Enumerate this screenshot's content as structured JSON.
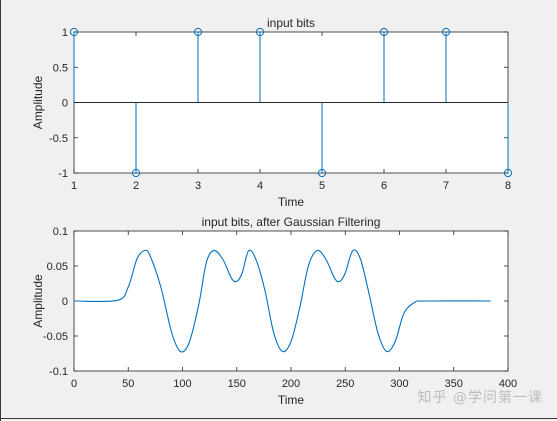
{
  "watermark": "知乎 @学问第一课",
  "chart_data": [
    {
      "type": "stem",
      "title": "input bits",
      "xlabel": "Time",
      "ylabel": "Amplitude",
      "xlim": [
        1,
        8
      ],
      "ylim": [
        -1,
        1
      ],
      "xticks": [
        "1",
        "2",
        "3",
        "4",
        "5",
        "6",
        "7",
        "8"
      ],
      "yticks": [
        "-1",
        "-0.5",
        "0",
        "0.5",
        "1"
      ],
      "x": [
        1,
        2,
        3,
        4,
        5,
        6,
        7,
        8
      ],
      "values": [
        1,
        -1,
        1,
        1,
        -1,
        1,
        1,
        -1
      ],
      "color": "#0072bd",
      "grid": false
    },
    {
      "type": "line",
      "title": "input bits, after Gaussian Filtering",
      "xlabel": "Time",
      "ylabel": "Amplitude",
      "xlim": [
        0,
        400
      ],
      "ylim": [
        -0.1,
        0.1
      ],
      "xticks": [
        "0",
        "50",
        "100",
        "150",
        "200",
        "250",
        "300",
        "350",
        "400"
      ],
      "yticks": [
        "-0.1",
        "-0.05",
        "0",
        "0.05",
        "0.1"
      ],
      "x": [
        0,
        40,
        50,
        58,
        65,
        70,
        80,
        90,
        98,
        106,
        115,
        122,
        129,
        137,
        145,
        150,
        155,
        161,
        168,
        176,
        184,
        192,
        200,
        208,
        216,
        224,
        232,
        240,
        245,
        250,
        257,
        264,
        272,
        280,
        288,
        296,
        304,
        314,
        324,
        384
      ],
      "values": [
        0,
        0.001,
        0.02,
        0.06,
        0.072,
        0.065,
        0.02,
        -0.045,
        -0.072,
        -0.06,
        -0.005,
        0.055,
        0.072,
        0.06,
        0.033,
        0.028,
        0.04,
        0.072,
        0.058,
        0.015,
        -0.045,
        -0.072,
        -0.058,
        -0.01,
        0.05,
        0.072,
        0.06,
        0.033,
        0.028,
        0.04,
        0.072,
        0.06,
        0.01,
        -0.045,
        -0.072,
        -0.058,
        -0.018,
        -0.002,
        0,
        0
      ],
      "color": "#0072bd",
      "grid": false
    }
  ]
}
